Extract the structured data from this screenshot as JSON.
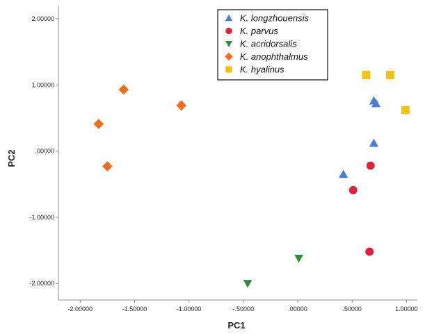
{
  "chart_data": {
    "type": "scatter",
    "xlabel": "PC1",
    "ylabel": "PC2",
    "xlim": [
      -2.2,
      1.1
    ],
    "ylim": [
      -2.25,
      2.2
    ],
    "x_ticks": [
      -2,
      -1.5,
      -1,
      -0.5,
      0,
      0.5,
      1
    ],
    "x_tick_labels": [
      "-2.00000",
      "-1.50000",
      "-1.00000",
      "-.50000",
      ".00000",
      ".50000",
      "1.00000"
    ],
    "y_ticks": [
      2,
      1,
      0,
      -1,
      -2
    ],
    "y_tick_labels": [
      "2.00000",
      "1.00000",
      ".00000",
      "-1.00000",
      "-2.00000"
    ],
    "grid": false,
    "legend_position": "top-center",
    "series": [
      {
        "name": "K. longzhouensis",
        "marker": "triangle-up",
        "color": "#4a7fd0",
        "points": [
          [
            0.7,
            0.76
          ],
          [
            0.72,
            0.72
          ],
          [
            0.7,
            0.12
          ],
          [
            0.42,
            -0.35
          ]
        ]
      },
      {
        "name": "K. parvus",
        "marker": "circle",
        "color": "#e0213a",
        "points": [
          [
            0.67,
            -0.22
          ],
          [
            0.51,
            -0.59
          ],
          [
            0.66,
            -1.52
          ]
        ]
      },
      {
        "name": "K. acridorsalis",
        "marker": "triangle-down",
        "color": "#2e8b3e",
        "points": [
          [
            0.01,
            -1.62
          ],
          [
            -0.46,
            -2.0
          ]
        ]
      },
      {
        "name": "K. anophthalmus",
        "marker": "diamond",
        "color": "#f26b22",
        "points": [
          [
            -1.6,
            0.93
          ],
          [
            -1.07,
            0.69
          ],
          [
            -1.83,
            0.41
          ],
          [
            -1.75,
            -0.23
          ]
        ]
      },
      {
        "name": "K. hyalinus",
        "marker": "square",
        "color": "#eec217",
        "points": [
          [
            0.63,
            1.15
          ],
          [
            0.85,
            1.15
          ],
          [
            0.99,
            0.62
          ]
        ]
      }
    ]
  }
}
